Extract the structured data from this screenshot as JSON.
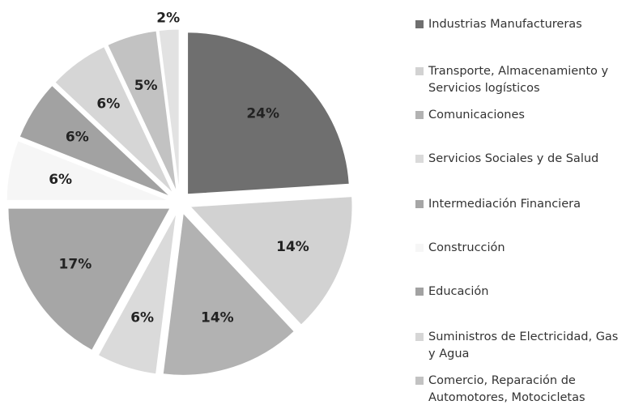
{
  "chart_data": {
    "type": "pie",
    "categories": [
      "Industrias Manufactureras",
      "Transporte, Almacenamiento y Servicios logísticos",
      "Comunicaciones",
      "Servicios Sociales y de Salud",
      "Intermediación Financiera",
      "Construcción",
      "Educación",
      "Suministros de Electricidad, Gas y Agua",
      "Comercio, Reparación de Automotores, Motocicletas",
      null
    ],
    "values": [
      24,
      14,
      14,
      6,
      17,
      6,
      6,
      6,
      5,
      2
    ],
    "value_labels": [
      "24%",
      "14%",
      "14%",
      "6%",
      "17%",
      "6%",
      "6%",
      "6%",
      "5%",
      "2%"
    ],
    "colors": [
      "#6f6f6f",
      "#d2d2d2",
      "#b2b2b2",
      "#dadada",
      "#a6a6a6",
      "#f6f6f6",
      "#a2a2a2",
      "#d6d6d6",
      "#c2c2c2",
      "#e2e2e2"
    ]
  }
}
